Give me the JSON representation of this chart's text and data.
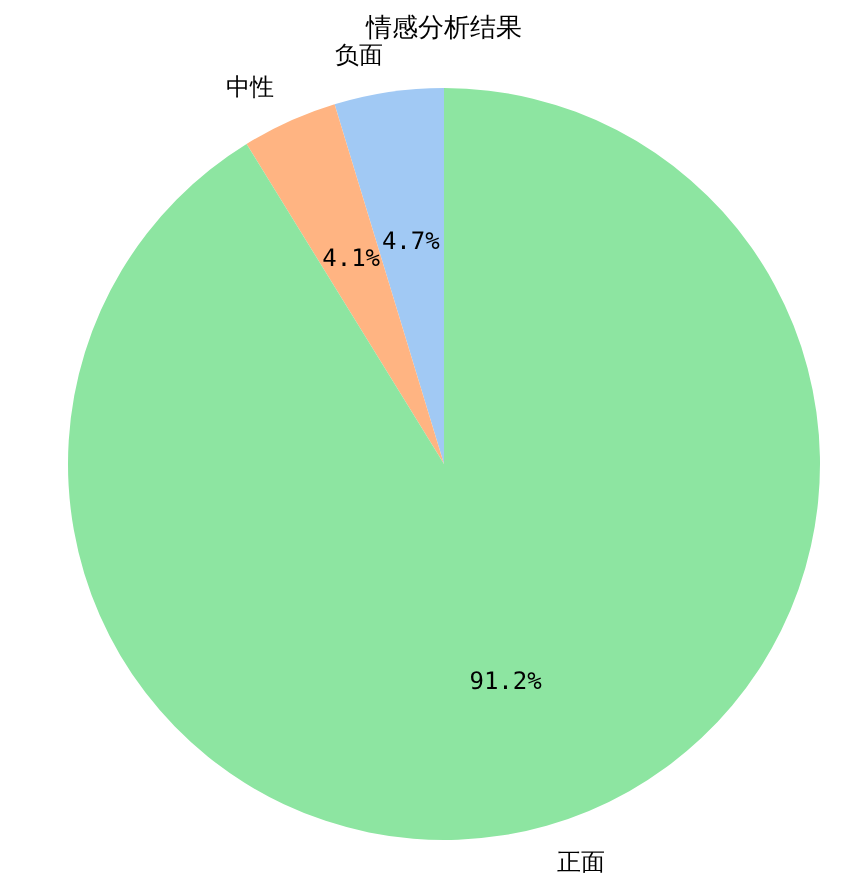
{
  "chart_data": {
    "type": "pie",
    "title": "情感分析结果",
    "categories": [
      "负面",
      "中性",
      "正面"
    ],
    "values": [
      4.7,
      4.1,
      91.2
    ],
    "colors": [
      "#a1c9f4",
      "#ffb482",
      "#8de5a1"
    ],
    "value_labels": [
      "4.7%",
      "4.1%",
      "91.2%"
    ]
  }
}
